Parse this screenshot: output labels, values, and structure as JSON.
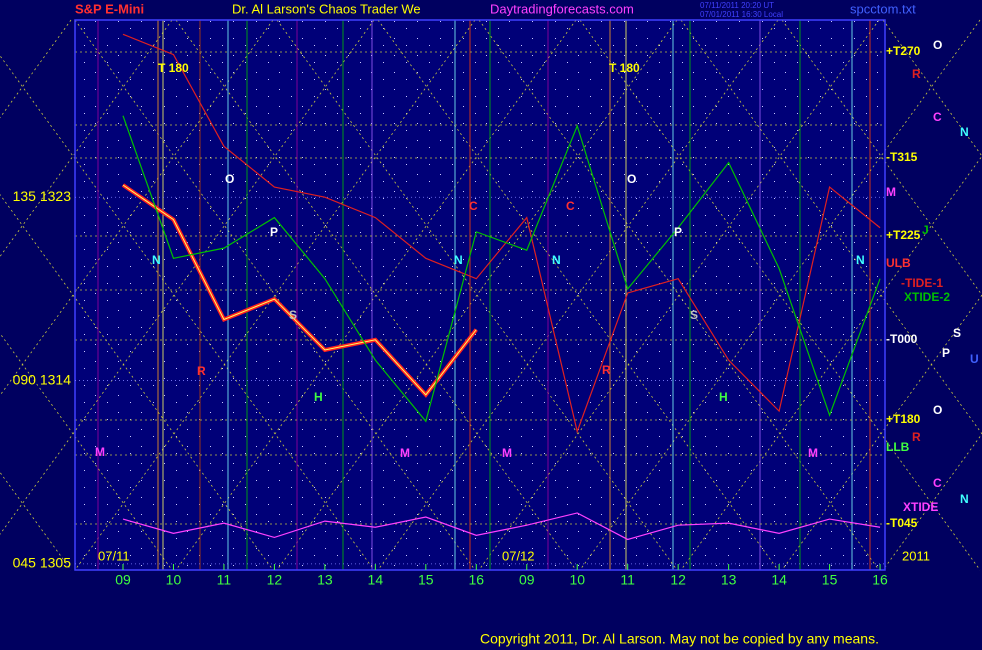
{
  "chart_data": {
    "type": "line",
    "title": "Dr. Al Larson's Chaos Trader We",
    "site": "Daytradingforecasts.com",
    "stamps": [
      "07/11/2011 20:20 UT",
      "07/01/2011 16:30 Local"
    ],
    "file": "spcctom.txt",
    "footer": "Copyright 2011, Dr. Al Larson. May not be copied by any means.",
    "date_labels": [
      "07/11",
      "07/12",
      "2011"
    ],
    "categories": [
      "09",
      "10",
      "11",
      "12",
      "13",
      "14",
      "15",
      "16",
      "09",
      "10",
      "11",
      "12",
      "13",
      "14",
      "15",
      "16"
    ],
    "series": [
      {
        "name": "S&P E-Mini",
        "color": "#ff2020",
        "values": [
          1323.6,
          1321.9,
          1317,
          1318,
          1315.5,
          1316,
          1313.3,
          1316.5,
          null,
          null,
          null,
          null,
          null,
          null,
          null,
          null
        ]
      },
      {
        "name": "-TIDE-1",
        "color": "#e02020",
        "values": [
          1331,
          1330,
          1325.5,
          1323.5,
          1323,
          1322,
          1320,
          1319,
          1322,
          1311.5,
          1318.3,
          1319,
          1315,
          1312.5,
          1323.5,
          1321.5
        ]
      },
      {
        "name": "XTIDE-2",
        "color": "#00c000",
        "values": [
          1327,
          1320,
          1320.5,
          1322,
          1319,
          1315,
          1312,
          1321.3,
          1320.4,
          1326.5,
          1318.5,
          1321.5,
          1324.7,
          1319.5,
          1312.3,
          1319
        ]
      },
      {
        "name": "XTIDE",
        "color": "#ff40ff",
        "values": [
          1307.2,
          1306.5,
          1307,
          1306.3,
          1307.1,
          1306.8,
          1307.3,
          1306.4,
          1306.9,
          1307.5,
          1306.2,
          1306.9,
          1307,
          1306.5,
          1307.2,
          1306.8
        ]
      }
    ],
    "ylim": [
      1304.7,
      1331.7
    ],
    "yticks": [
      {
        "value": 1305,
        "label": "045 1305"
      },
      {
        "value": 1314,
        "label": "090 1314"
      },
      {
        "value": 1323,
        "label": "135 1323"
      }
    ],
    "grid": true,
    "annotations": [
      "+T270",
      "O",
      "R",
      "C",
      "N",
      "-T315",
      "M",
      "+T225",
      "J",
      "ULB",
      "-T000",
      "S",
      "P",
      "U",
      "+T180",
      "O",
      "R",
      "LLB",
      "C",
      "N",
      "-T045",
      "T  180",
      "O",
      "P",
      "N",
      "R",
      "S",
      "H",
      "M",
      "M",
      "M",
      "N",
      "C",
      "C",
      "N",
      "R",
      "T  180",
      "O",
      "P",
      "S",
      "H",
      "M",
      "N"
    ]
  }
}
